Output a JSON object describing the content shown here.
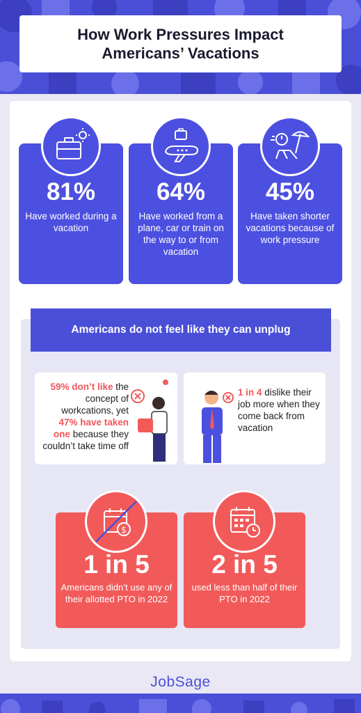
{
  "title": {
    "line1": "How Work Pressures Impact",
    "line2": "Americans’ Vacations"
  },
  "stats": [
    {
      "value": "81%",
      "desc": "Have worked during a vacation",
      "icon": "briefcase-sun-icon"
    },
    {
      "value": "64%",
      "desc": "Have worked from a plane, car or train on the way to or from vacation",
      "icon": "plane-briefcase-icon"
    },
    {
      "value": "45%",
      "desc": "Have taken shorter vacations because of work pressure",
      "icon": "stopwatch-beach-chair-icon"
    }
  ],
  "section": {
    "heading": "Americans do not feel like they can unplug"
  },
  "quotes": [
    {
      "hl1": "59% don’t like",
      "t1": " the concept of workcations, yet ",
      "hl2": "47% have taken one",
      "t2": " because they couldn’t take time off"
    },
    {
      "hl1": "1 in 4",
      "t1": " dislike their job more when they come back from vacation"
    }
  ],
  "pto": [
    {
      "value": "1 in 5",
      "desc": "Americans didn’t use any of their allotted PTO in 2022",
      "icon": "calendar-dollar-crossed-icon"
    },
    {
      "value": "2 in 5",
      "desc": "used less than half of their PTO in 2022",
      "icon": "calendar-clock-icon"
    }
  ],
  "brand": {
    "logo": "JobSage"
  },
  "colors": {
    "brand_blue": "#4a4fd8",
    "accent_red": "#f25a5a",
    "highlight_red": "#f0565a",
    "panel_lavender": "#e7e6f5"
  }
}
